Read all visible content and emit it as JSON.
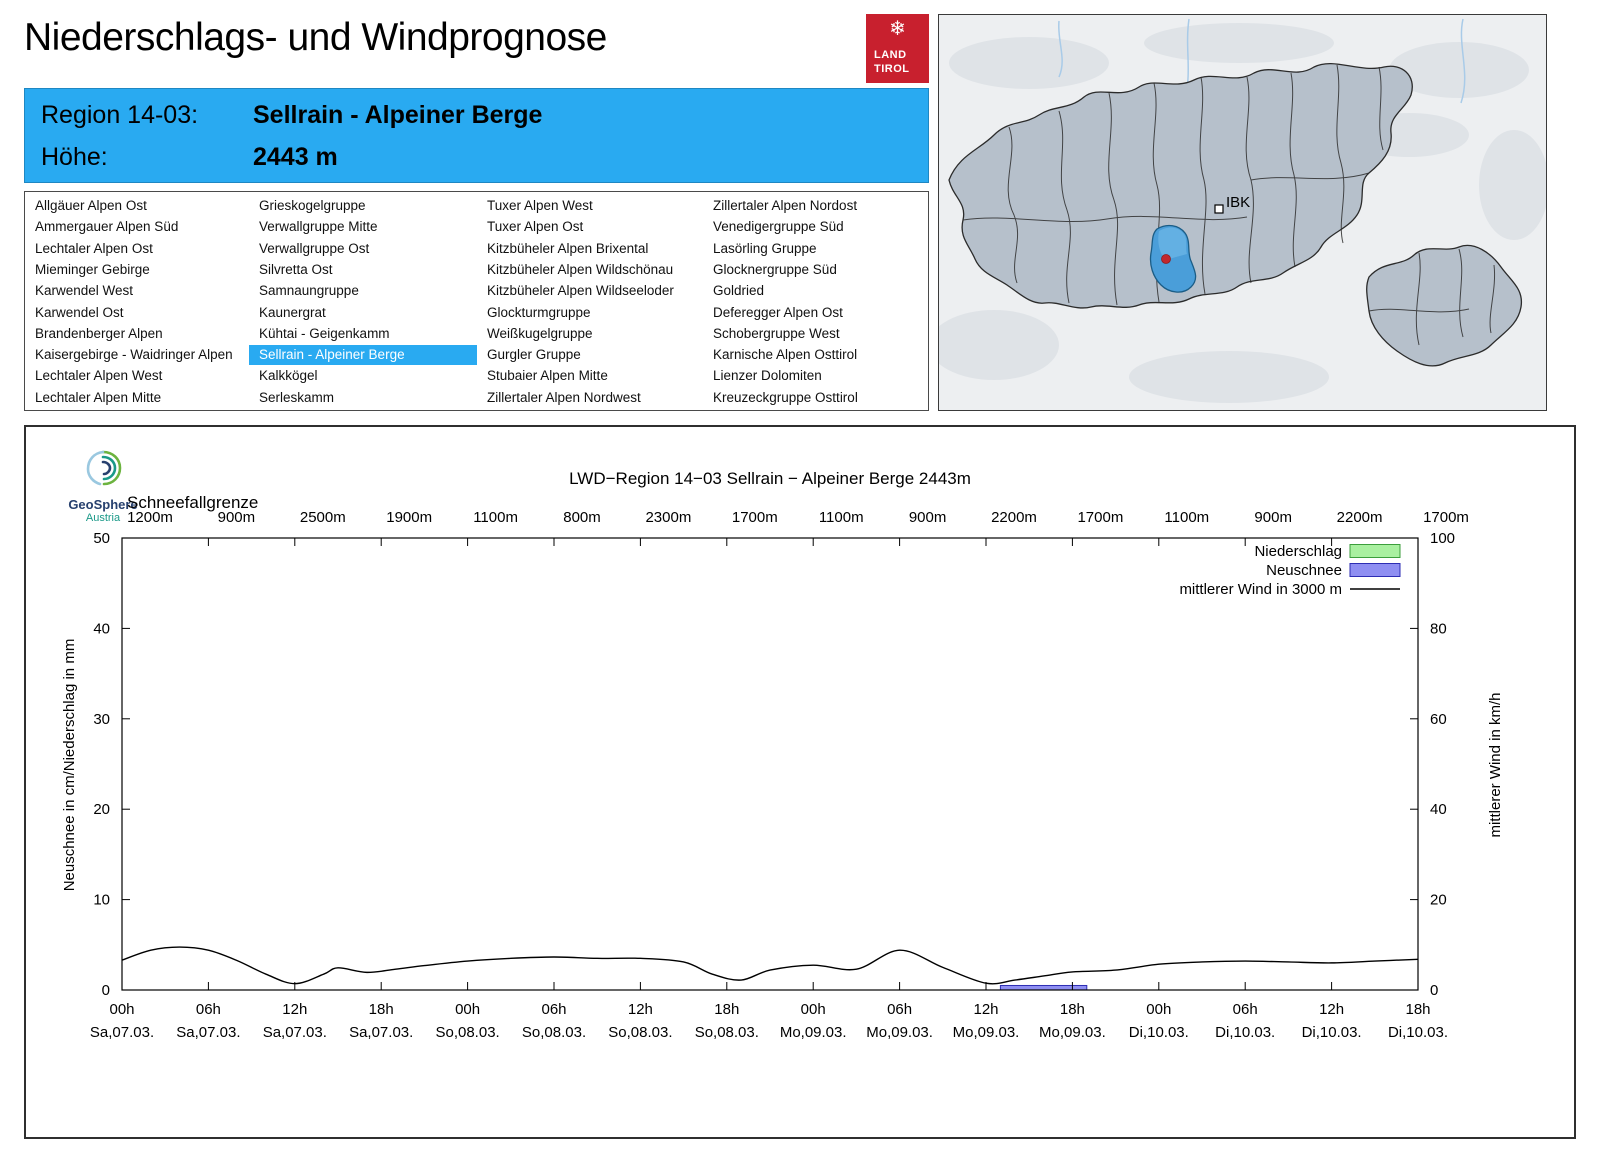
{
  "header": {
    "title": "Niederschlags- und Windprognose",
    "logo": {
      "snowflake": "❄",
      "line1": "LAND",
      "line2": "TIROL"
    }
  },
  "region_info": {
    "region_label": "Region 14-03:",
    "region_value": "Sellrain - Alpeiner Berge",
    "altitude_label": "Höhe:",
    "altitude_value": "2443 m"
  },
  "region_list": {
    "selected": "Sellrain - Alpeiner Berge",
    "columns": [
      [
        "Allgäuer Alpen Ost",
        "Ammergauer Alpen Süd",
        "Lechtaler Alpen Ost",
        "Mieminger Gebirge",
        "Karwendel West",
        "Karwendel Ost",
        "Brandenberger Alpen",
        "Kaisergebirge - Waidringer Alpen",
        "Lechtaler Alpen West",
        "Lechtaler Alpen Mitte"
      ],
      [
        "Grieskogelgruppe",
        "Verwallgruppe Mitte",
        "Verwallgruppe Ost",
        "Silvretta Ost",
        "Samnaungruppe",
        "Kaunergrat",
        "Kühtai - Geigenkamm",
        "Sellrain - Alpeiner Berge",
        "Kalkkögel",
        "Serleskamm"
      ],
      [
        "Tuxer Alpen West",
        "Tuxer Alpen Ost",
        "Kitzbüheler Alpen Brixental",
        "Kitzbüheler Alpen Wildschönau",
        "Kitzbüheler Alpen Wildseeloder",
        "Glockturmgruppe",
        "Weißkugelgruppe",
        "Gurgler Gruppe",
        "Stubaier Alpen Mitte",
        "Zillertaler Alpen Nordwest"
      ],
      [
        "Zillertaler Alpen Nordost",
        "Venedigergruppe Süd",
        "Lasörling Gruppe",
        "Glocknergruppe Süd",
        "Goldried",
        "Deferegger Alpen Ost",
        "Schobergruppe West",
        "Karnische Alpen Osttirol",
        "Lienzer Dolomiten",
        "Kreuzeckgruppe Osttirol"
      ]
    ]
  },
  "map": {
    "city_label": "IBK"
  },
  "branding": {
    "geosphere_line1": "GeoSphere",
    "geosphere_line2": "Austria"
  },
  "colors": {
    "accent_blue": "#29aaf1",
    "brand_red": "#c8202e",
    "map_highlight": "#4a9ed9",
    "map_region_fill": "#b6c0cb"
  },
  "chart_data": {
    "type": "line",
    "title": "LWD−Region 14−03 Sellrain − Alpeiner Berge 2443m",
    "snowline_label": "Schneefallgrenze",
    "snowline_values": [
      "1200m",
      "900m",
      "2500m",
      "1900m",
      "1100m",
      "800m",
      "2300m",
      "1700m",
      "1100m",
      "900m",
      "2200m",
      "1700m",
      "1100m",
      "900m",
      "2200m",
      "1700m"
    ],
    "ylabel_left": "Neuschnee in cm/Niederschlag in mm",
    "ylabel_right": "mittlerer Wind in km/h",
    "ylim_left": [
      0,
      50
    ],
    "ylim_right": [
      0,
      100
    ],
    "yticks_left": [
      0,
      10,
      20,
      30,
      40,
      50
    ],
    "yticks_right": [
      0,
      20,
      40,
      60,
      80,
      100
    ],
    "time_span_hours": 90,
    "x_tick_step_hours": 6,
    "x_hour_labels": [
      "00h",
      "06h",
      "12h",
      "18h",
      "00h",
      "06h",
      "12h",
      "18h",
      "00h",
      "06h",
      "12h",
      "18h",
      "00h",
      "06h",
      "12h",
      "18h"
    ],
    "x_date_labels": [
      "Sa,07.03.",
      "Sa,07.03.",
      "Sa,07.03.",
      "Sa,07.03.",
      "So,08.03.",
      "So,08.03.",
      "So,08.03.",
      "So,08.03.",
      "Mo,09.03.",
      "Mo,09.03.",
      "Mo,09.03.",
      "Mo,09.03.",
      "Di,10.03.",
      "Di,10.03.",
      "Di,10.03.",
      "Di,10.03."
    ],
    "legend": [
      {
        "label": "Niederschlag",
        "type": "box",
        "fill": "#a9f0a0",
        "border": "#3c9e3c"
      },
      {
        "label": "Neuschnee",
        "type": "box",
        "fill": "#8f8ff2",
        "border": "#2d2db4"
      },
      {
        "label": "mittlerer Wind in 3000 m",
        "type": "line",
        "color": "#000000"
      }
    ],
    "series": [
      {
        "name": "mittlerer Wind in 3000 m",
        "axis": "right",
        "unit": "km/h",
        "x_hours": [
          0,
          2,
          4,
          6,
          8,
          10,
          12,
          14,
          15,
          17,
          19,
          21,
          24,
          27,
          30,
          33,
          36,
          39,
          41,
          43,
          45,
          48,
          51,
          54,
          57,
          60,
          62,
          64,
          66,
          69,
          72,
          75,
          78,
          81,
          84,
          87,
          90
        ],
        "values": [
          6.6,
          8.8,
          9.5,
          8.8,
          6.5,
          3.5,
          1.4,
          3.5,
          4.9,
          3.9,
          4.6,
          5.4,
          6.4,
          7.0,
          7.3,
          7.0,
          7.0,
          6.2,
          3.5,
          2.2,
          4.4,
          5.5,
          4.6,
          8.8,
          5.0,
          1.5,
          2.2,
          3.1,
          4.0,
          4.4,
          5.7,
          6.2,
          6.4,
          6.2,
          6.0,
          6.4,
          6.8
        ]
      },
      {
        "name": "Neuschnee",
        "axis": "left",
        "unit": "cm",
        "bars": [
          {
            "start_hour": 61,
            "end_hour": 67,
            "value": 0.5
          }
        ]
      },
      {
        "name": "Niederschlag",
        "axis": "left",
        "unit": "mm",
        "bars": []
      }
    ]
  }
}
